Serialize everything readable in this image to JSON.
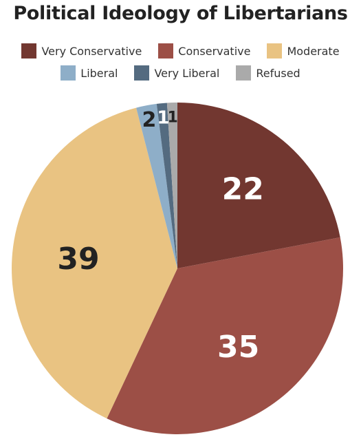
{
  "chart_data": {
    "type": "pie",
    "title": "Political Ideology of Libertarians",
    "categories": [
      "Very Conservative",
      "Conservative",
      "Moderate",
      "Liberal",
      "Very Liberal",
      "Refused"
    ],
    "values": [
      22,
      35,
      39,
      2,
      1,
      1
    ],
    "colors": [
      "#723730",
      "#9c4f46",
      "#e9c382",
      "#8eaec8",
      "#546b80",
      "#aaaaaa"
    ],
    "label_colors": [
      "#ffffff",
      "#ffffff",
      "#222222",
      "#222222",
      "#ffffff",
      "#222222"
    ],
    "start": "12 o'clock",
    "direction": "clockwise",
    "legend_position": "top"
  }
}
